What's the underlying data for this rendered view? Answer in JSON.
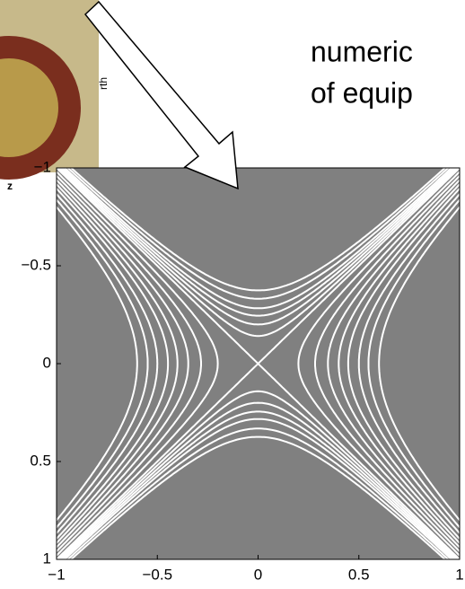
{
  "slide_text": {
    "line1": "numeric",
    "line2": "of equip",
    "side": "rth",
    "corner": "z"
  },
  "chart_data": {
    "type": "contour",
    "xlim": [
      -1,
      1
    ],
    "ylim": [
      -1,
      1
    ],
    "y_inverted": true,
    "xticks": [
      {
        "value": -1,
        "label": "−1"
      },
      {
        "value": -0.5,
        "label": "−0.5"
      },
      0,
      0.5,
      1
    ],
    "yticks": [
      {
        "value": -1,
        "label": "−1"
      },
      {
        "value": -0.5,
        "label": "−0.5"
      },
      0,
      0.5,
      1
    ],
    "background": "#808080",
    "color": "#ffffff",
    "levels": [
      -0.14,
      -0.11,
      -0.08,
      -0.06,
      -0.04,
      -0.02,
      0,
      0.04,
      0.08,
      0.12,
      0.16,
      0.2,
      0.25,
      0.3,
      0.36
    ]
  }
}
